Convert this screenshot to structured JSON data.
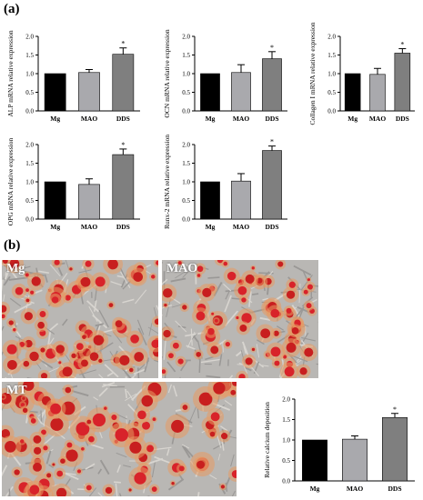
{
  "panels": {
    "a": "(a)",
    "b": "(b)"
  },
  "colors": {
    "Mg": "#000000",
    "MAO": "#a9a9ad",
    "DDS": "#7f7f7f"
  },
  "chart_data": [
    {
      "type": "bar",
      "ylabel": "ALP mRNA relative expression",
      "categories": [
        "Mg",
        "MAO",
        "DDS"
      ],
      "values": [
        1.0,
        1.03,
        1.52
      ],
      "errors": [
        0,
        0.08,
        0.17
      ],
      "ylim": [
        0,
        2.0
      ],
      "yticks": [
        "0.0",
        "0.5",
        "1.0",
        "1.5",
        "2.0"
      ],
      "annotations": [
        "",
        "",
        "*"
      ]
    },
    {
      "type": "bar",
      "ylabel": "OCN mRNA relative expression",
      "categories": [
        "Mg",
        "MAO",
        "DDS"
      ],
      "values": [
        1.0,
        1.03,
        1.4
      ],
      "errors": [
        0,
        0.21,
        0.19
      ],
      "ylim": [
        0,
        2.0
      ],
      "yticks": [
        "0.0",
        "0.5",
        "1.0",
        "1.5",
        "2.0"
      ],
      "annotations": [
        "",
        "",
        "*"
      ]
    },
    {
      "type": "bar",
      "ylabel": "Collagen I mRNA relative expression",
      "categories": [
        "Mg",
        "MAO",
        "DDS"
      ],
      "values": [
        1.0,
        0.98,
        1.55
      ],
      "errors": [
        0,
        0.16,
        0.12
      ],
      "ylim": [
        0,
        2.0
      ],
      "yticks": [
        "0.0",
        "0.5",
        "1.0",
        "1.5",
        "2.0"
      ],
      "annotations": [
        "",
        "",
        "*"
      ]
    },
    {
      "type": "bar",
      "ylabel": "OPG mRNA relative expression",
      "categories": [
        "Mg",
        "MAO",
        "DDS"
      ],
      "values": [
        1.0,
        0.93,
        1.73
      ],
      "errors": [
        0,
        0.15,
        0.15
      ],
      "ylim": [
        0,
        2.0
      ],
      "yticks": [
        "0.0",
        "0.5",
        "1.0",
        "1.5",
        "2.0"
      ],
      "annotations": [
        "",
        "",
        "*"
      ]
    },
    {
      "type": "bar",
      "ylabel": "Runx-2 mRNA relative expression",
      "categories": [
        "Mg",
        "MAO",
        "DDS"
      ],
      "values": [
        1.0,
        1.02,
        1.84
      ],
      "errors": [
        0,
        0.2,
        0.12
      ],
      "ylim": [
        0,
        2.0
      ],
      "yticks": [
        "0.0",
        "0.5",
        "1.0",
        "1.5",
        "2.0"
      ],
      "annotations": [
        "",
        "",
        "*"
      ]
    },
    {
      "type": "bar",
      "ylabel": "Relative calcium deposition",
      "categories": [
        "Mg",
        "MAO",
        "DDS"
      ],
      "values": [
        1.0,
        1.02,
        1.55
      ],
      "errors": [
        0,
        0.08,
        0.1
      ],
      "ylim": [
        0,
        2.0
      ],
      "yticks": [
        "0.0",
        "0.5",
        "1.0",
        "1.5",
        "2.0"
      ],
      "annotations": [
        "",
        "",
        "*"
      ]
    }
  ],
  "micrographs": [
    {
      "label": "Mg"
    },
    {
      "label": "MAO"
    },
    {
      "label": "MT"
    }
  ]
}
